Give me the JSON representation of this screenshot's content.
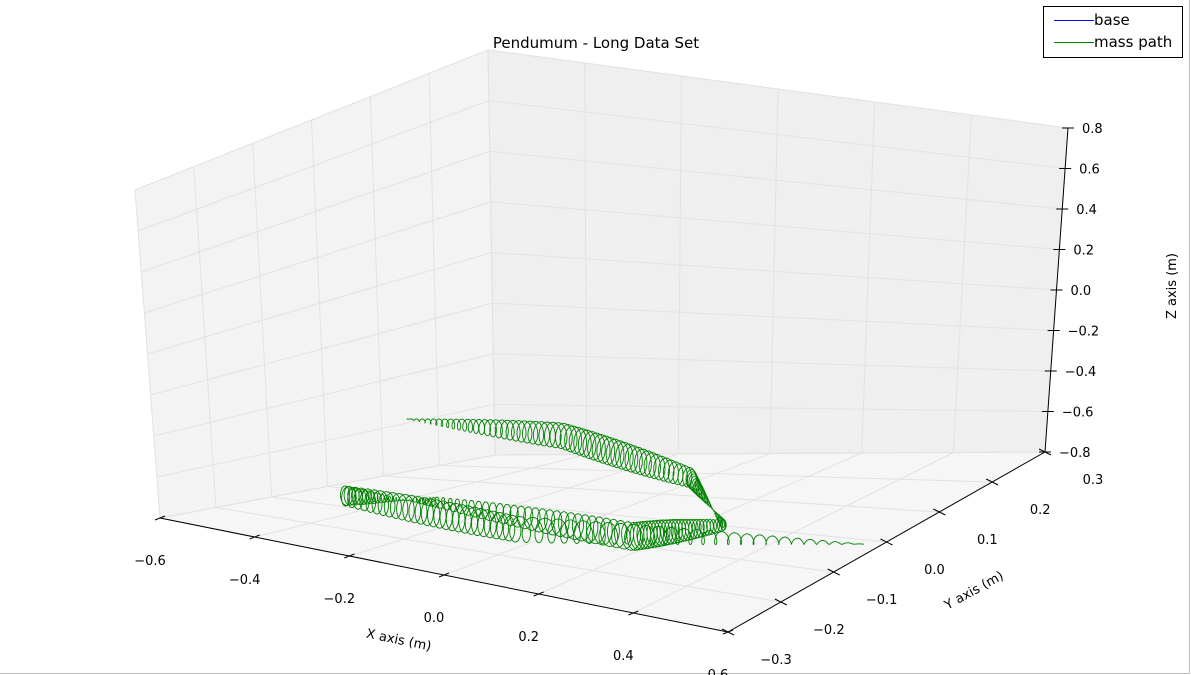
{
  "chart_data": {
    "type": "line",
    "projection": "3d",
    "title": "Pendumum - Long Data Set",
    "xlabel": "X axis (m)",
    "ylabel": "Y axis (m)",
    "zlabel": "Z axis (m)",
    "xlim": [
      -0.6,
      0.6
    ],
    "ylim": [
      -0.3,
      0.3
    ],
    "zlim": [
      -0.8,
      0.8
    ],
    "xticks": [
      "−0.6",
      "−0.4",
      "−0.2",
      "0.0",
      "0.2",
      "0.4",
      "0.6"
    ],
    "yticks": [
      "−0.3",
      "−0.2",
      "−0.1",
      "0.0",
      "0.1",
      "0.2",
      "0.3"
    ],
    "zticks": [
      "−0.8",
      "−0.6",
      "−0.4",
      "−0.2",
      "0.0",
      "0.2",
      "0.4",
      "0.6",
      "0.8"
    ],
    "grid": true,
    "legend_position": "top-right",
    "series": [
      {
        "name": "base",
        "color": "#0000ff",
        "points": [
          [
            0,
            0,
            0
          ]
        ]
      },
      {
        "name": "mass path",
        "color": "#008000",
        "points": [
          [
            -0.48,
            0.05,
            -0.44
          ],
          [
            -0.16,
            0.06,
            -0.38
          ],
          [
            0.12,
            0.05,
            -0.45
          ],
          [
            0.22,
            0.02,
            -0.62
          ],
          [
            0.12,
            -0.06,
            -0.68
          ],
          [
            -0.22,
            -0.12,
            -0.64
          ],
          [
            -0.42,
            -0.12,
            -0.7
          ],
          [
            -0.14,
            -0.05,
            -0.77
          ],
          [
            0.42,
            0.1,
            -0.66
          ]
        ]
      }
    ]
  }
}
